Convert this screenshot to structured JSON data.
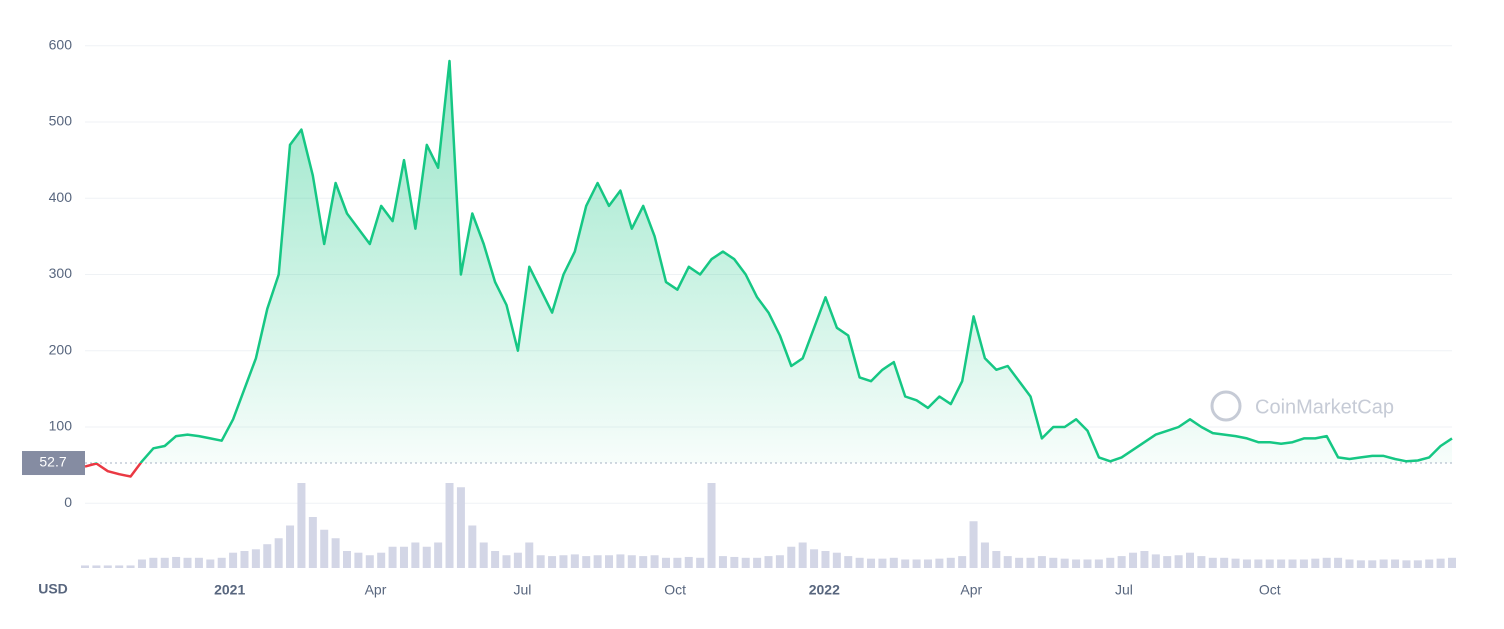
{
  "chart_data": {
    "type": "line",
    "currency_label": "USD",
    "watermark": "CoinMarketCap",
    "values": [
      48,
      52,
      42,
      38,
      35,
      55,
      72,
      75,
      88,
      90,
      88,
      85,
      82,
      110,
      150,
      190,
      255,
      300,
      470,
      490,
      430,
      340,
      420,
      380,
      360,
      340,
      390,
      370,
      450,
      360,
      470,
      440,
      580,
      300,
      380,
      340,
      290,
      260,
      200,
      310,
      280,
      250,
      300,
      330,
      390,
      420,
      390,
      410,
      360,
      390,
      350,
      290,
      280,
      310,
      300,
      320,
      330,
      320,
      300,
      270,
      250,
      220,
      180,
      190,
      230,
      270,
      230,
      220,
      165,
      160,
      175,
      185,
      140,
      135,
      125,
      140,
      130,
      160,
      245,
      190,
      175,
      180,
      160,
      140,
      85,
      100,
      100,
      110,
      95,
      60,
      55,
      60,
      70,
      80,
      90,
      95,
      100,
      110,
      100,
      92,
      90,
      88,
      85,
      80,
      80,
      78,
      80,
      85,
      85,
      88,
      60,
      58,
      60,
      62,
      62,
      58,
      55,
      56,
      60,
      75,
      85
    ],
    "color": "#16c784",
    "below_color": "#ea3943",
    "baseline": 52.7,
    "ylim": [
      -85,
      660
    ],
    "yticks": [
      0,
      100,
      200,
      300,
      400,
      500,
      600
    ],
    "xlim": [
      0,
      120
    ],
    "xticks": [
      {
        "value": 12.7,
        "label": "2021"
      },
      {
        "value": 25.5,
        "label": "Apr"
      },
      {
        "value": 38.4,
        "label": "Jul"
      },
      {
        "value": 51.8,
        "label": "Oct"
      },
      {
        "value": 64.9,
        "label": "2022"
      },
      {
        "value": 77.8,
        "label": "Apr"
      },
      {
        "value": 91.2,
        "label": "Jul"
      },
      {
        "value": 104,
        "label": "Oct"
      }
    ],
    "grid": true,
    "volume": {
      "color": "#d3d6e6",
      "lim": [
        0,
        100
      ],
      "values": [
        3,
        3,
        3,
        3,
        3,
        10,
        12,
        12,
        13,
        12,
        12,
        10,
        12,
        18,
        20,
        22,
        28,
        35,
        50,
        100,
        60,
        45,
        35,
        20,
        18,
        15,
        18,
        25,
        25,
        30,
        25,
        30,
        100,
        95,
        50,
        30,
        20,
        15,
        18,
        30,
        15,
        14,
        15,
        16,
        14,
        15,
        15,
        16,
        15,
        14,
        15,
        12,
        12,
        13,
        12,
        100,
        14,
        13,
        12,
        12,
        14,
        15,
        25,
        30,
        22,
        20,
        18,
        14,
        12,
        11,
        11,
        12,
        10,
        10,
        10,
        11,
        12,
        14,
        55,
        30,
        20,
        14,
        12,
        12,
        14,
        12,
        11,
        10,
        10,
        10,
        12,
        14,
        18,
        20,
        16,
        14,
        15,
        18,
        14,
        12,
        12,
        11,
        10,
        10,
        10,
        10,
        10,
        10,
        11,
        12,
        12,
        10,
        9,
        9,
        10,
        10,
        9,
        9,
        10,
        11,
        12
      ]
    }
  }
}
